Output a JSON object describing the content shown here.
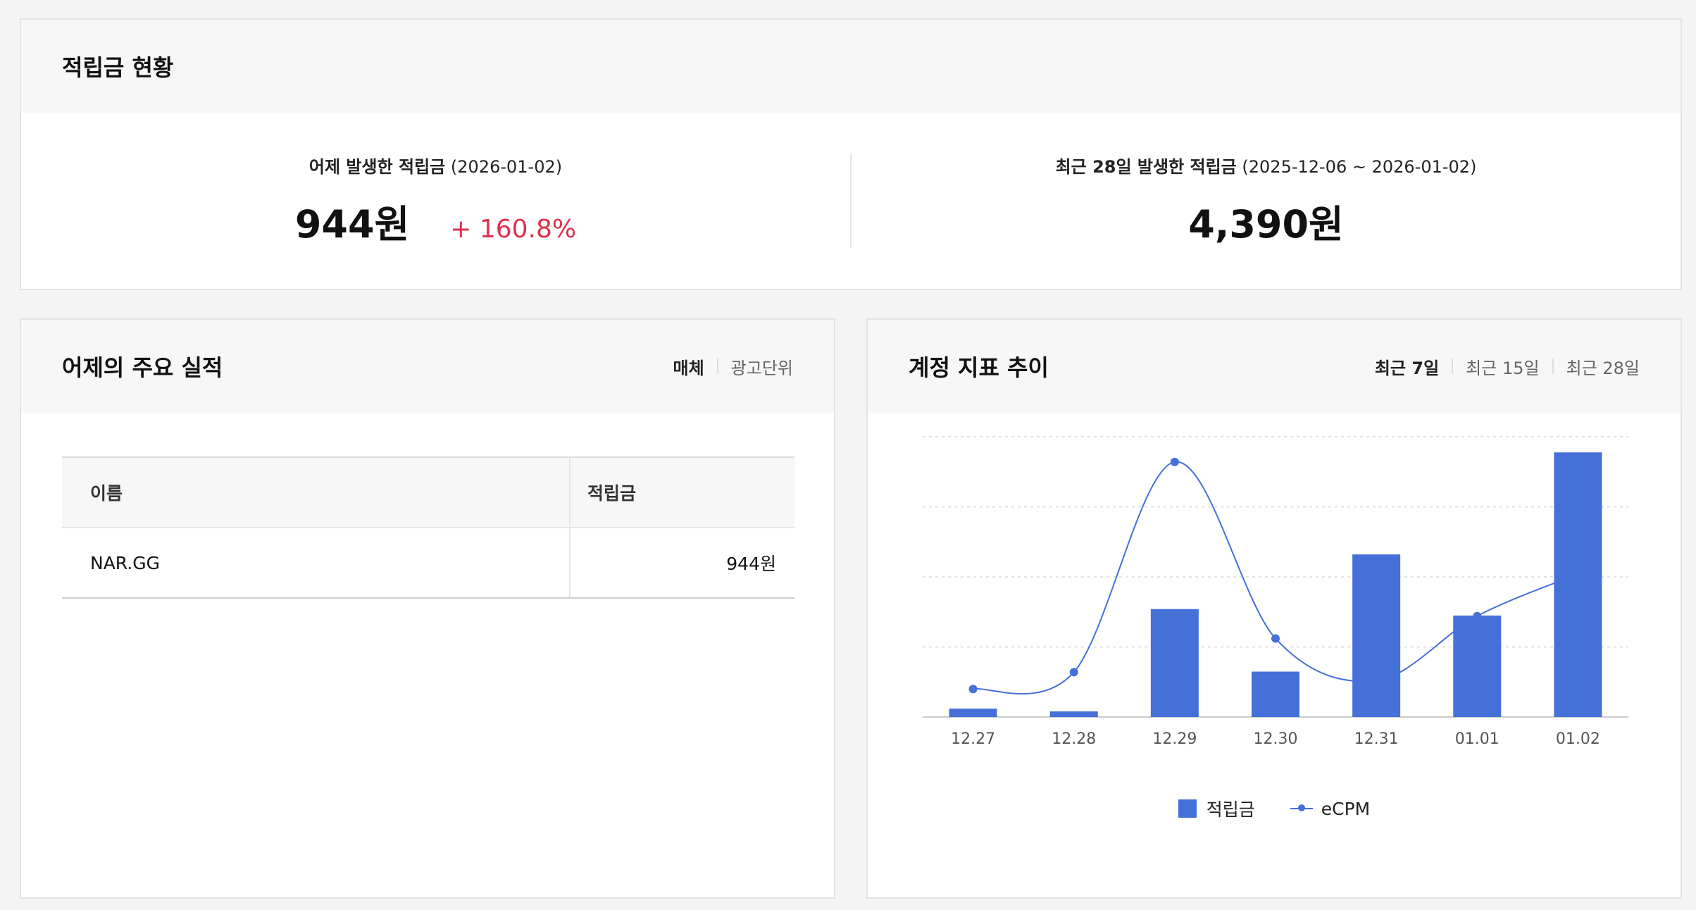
{
  "summary": {
    "title": "적립금 현황",
    "yesterday": {
      "label": "어제 발생한 적립금",
      "date": "(2026-01-02)",
      "value": "944원",
      "change": "+ 160.8%"
    },
    "recent28": {
      "label": "최근 28일 발생한 적립금",
      "date": "(2025-12-06 ~ 2026-01-02)",
      "value": "4,390원"
    }
  },
  "performance": {
    "title": "어제의 주요 실적",
    "toggle": [
      "매체",
      "광고단위"
    ],
    "active_toggle": "매체",
    "table": {
      "headers": [
        "이름",
        "적립금"
      ],
      "rows": [
        {
          "name": "NAR.GG",
          "value": "944원"
        }
      ]
    }
  },
  "trend": {
    "title": "계정 지표 추이",
    "periods": [
      "최근 7일",
      "최근 15일",
      "최근 28일"
    ],
    "active_period": "최근 7일",
    "legend": [
      "적립금",
      "eCPM"
    ]
  },
  "colors": {
    "bar": "#4470d8",
    "line": "#4470d8",
    "change_positive": "#e0314b"
  },
  "chart_data": {
    "type": "bar",
    "categories": [
      "12.27",
      "12.28",
      "12.29",
      "12.30",
      "12.31",
      "01.01",
      "01.02"
    ],
    "series": [
      {
        "name": "적립금",
        "type": "bar",
        "values": [
          30,
          20,
          385,
          162,
          580,
          362,
          944
        ]
      },
      {
        "name": "eCPM",
        "type": "line",
        "values": [
          0.1,
          0.16,
          0.91,
          0.28,
          0.13,
          0.36,
          0.51
        ]
      }
    ],
    "ylim_bar": [
      0,
      1000
    ],
    "ylim_line": [
      0,
      1
    ],
    "grid": true,
    "legend_position": "bottom"
  }
}
